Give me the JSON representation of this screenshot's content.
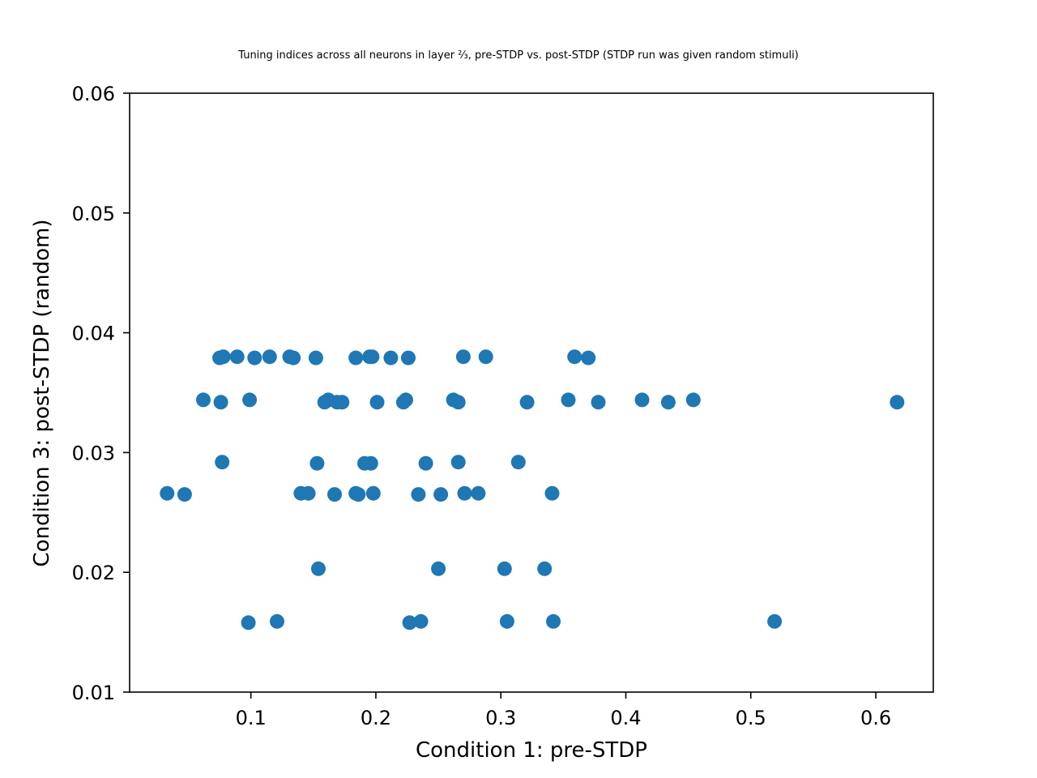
{
  "chart_data": {
    "type": "scatter",
    "title": "Tuning indices across all neurons in layer ⅔, pre-STDP vs. post-STDP (STDP run was given random stimuli)",
    "xlabel": "Condition 1: pre-STDP",
    "ylabel": "Condition 3: post-STDP (random)",
    "xlim": [
      0.003,
      0.646
    ],
    "ylim": [
      0.01,
      0.06
    ],
    "xticks": [
      0.1,
      0.2,
      0.3,
      0.4,
      0.5,
      0.6
    ],
    "xtick_labels": [
      "0.1",
      "0.2",
      "0.3",
      "0.4",
      "0.5",
      "0.6"
    ],
    "yticks": [
      0.01,
      0.02,
      0.03,
      0.04,
      0.05,
      0.06
    ],
    "ytick_labels": [
      "0.01",
      "0.02",
      "0.03",
      "0.04",
      "0.05",
      "0.06"
    ],
    "grid": false,
    "marker_color": "#1f77b4",
    "points": [
      [
        0.075,
        0.0379
      ],
      [
        0.078,
        0.038
      ],
      [
        0.089,
        0.038
      ],
      [
        0.103,
        0.0379
      ],
      [
        0.115,
        0.038
      ],
      [
        0.131,
        0.038
      ],
      [
        0.134,
        0.0379
      ],
      [
        0.152,
        0.0379
      ],
      [
        0.184,
        0.0379
      ],
      [
        0.195,
        0.038
      ],
      [
        0.197,
        0.038
      ],
      [
        0.212,
        0.0379
      ],
      [
        0.226,
        0.0379
      ],
      [
        0.27,
        0.038
      ],
      [
        0.288,
        0.038
      ],
      [
        0.359,
        0.038
      ],
      [
        0.37,
        0.0379
      ],
      [
        0.062,
        0.0344
      ],
      [
        0.076,
        0.0342
      ],
      [
        0.099,
        0.0344
      ],
      [
        0.159,
        0.0342
      ],
      [
        0.162,
        0.0344
      ],
      [
        0.169,
        0.0342
      ],
      [
        0.173,
        0.0342
      ],
      [
        0.201,
        0.0342
      ],
      [
        0.222,
        0.0342
      ],
      [
        0.224,
        0.0344
      ],
      [
        0.262,
        0.0344
      ],
      [
        0.266,
        0.0342
      ],
      [
        0.321,
        0.0342
      ],
      [
        0.354,
        0.0344
      ],
      [
        0.378,
        0.0342
      ],
      [
        0.413,
        0.0344
      ],
      [
        0.434,
        0.0342
      ],
      [
        0.454,
        0.0344
      ],
      [
        0.617,
        0.0342
      ],
      [
        0.077,
        0.0292
      ],
      [
        0.153,
        0.0291
      ],
      [
        0.191,
        0.0291
      ],
      [
        0.196,
        0.0291
      ],
      [
        0.24,
        0.0291
      ],
      [
        0.266,
        0.0292
      ],
      [
        0.314,
        0.0292
      ],
      [
        0.033,
        0.0266
      ],
      [
        0.047,
        0.0265
      ],
      [
        0.14,
        0.0266
      ],
      [
        0.146,
        0.0266
      ],
      [
        0.167,
        0.0265
      ],
      [
        0.184,
        0.0266
      ],
      [
        0.186,
        0.0265
      ],
      [
        0.198,
        0.0266
      ],
      [
        0.234,
        0.0265
      ],
      [
        0.252,
        0.0265
      ],
      [
        0.271,
        0.0266
      ],
      [
        0.282,
        0.0266
      ],
      [
        0.341,
        0.0266
      ],
      [
        0.154,
        0.0203
      ],
      [
        0.25,
        0.0203
      ],
      [
        0.303,
        0.0203
      ],
      [
        0.335,
        0.0203
      ],
      [
        0.098,
        0.0158
      ],
      [
        0.121,
        0.0159
      ],
      [
        0.227,
        0.0158
      ],
      [
        0.236,
        0.0159
      ],
      [
        0.305,
        0.0159
      ],
      [
        0.342,
        0.0159
      ],
      [
        0.519,
        0.0159
      ]
    ]
  }
}
